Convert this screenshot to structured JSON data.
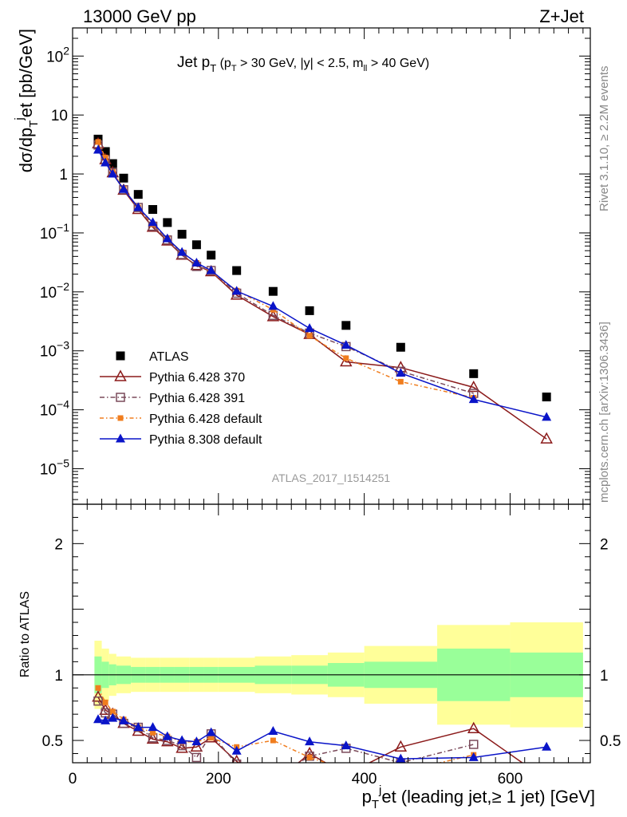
{
  "header": {
    "left": "13000 GeV pp",
    "right": "Z+Jet"
  },
  "side_labels": {
    "rivet": "Rivet 3.1.10, ≥ 2.2M events",
    "mcplots": "mcplots.cern.ch [arXiv:1306.3436]"
  },
  "analysis_id": "ATLAS_2017_I1514251",
  "colors": {
    "atlas": "#000000",
    "py6_370": "#8b1a1a",
    "py6_391": "#7a4a5a",
    "py6_default": "#f07d1e",
    "py8_default": "#0a14c8",
    "band_inner": "#99ff99",
    "band_outer": "#ffff99"
  },
  "chart_data": [
    {
      "type": "scatter",
      "panel": "main",
      "title": "Jet p_T (p_T > 30 GeV, |y| < 2.5, m_ll > 40 GeV)",
      "title_parts": {
        "main": "Jet p",
        "main_sub": "T",
        "paren_open": " (p",
        "paren_sub": "T",
        "mid": " > 30 GeV, |y| < 2.5, m",
        "mid_sub": "ll",
        "end": " > 40 GeV)"
      },
      "ylabel_parts": {
        "a": "dσ/dp",
        "sub": "T",
        "sup": "j",
        "b": "et [pb/GeV]"
      },
      "yscale": "log",
      "xlim": [
        0,
        710
      ],
      "ylim": [
        2.5e-06,
        300
      ],
      "y_tick_labels": [
        "10^-5",
        "10^-4",
        "10^-3",
        "10^-2",
        "10^-1",
        "1",
        "10",
        "10^2"
      ],
      "y_ticks_display": {
        "major": [
          {
            "v": 1e-05,
            "base": "10",
            "exp": "−5"
          },
          {
            "v": 0.0001,
            "base": "10",
            "exp": "−4"
          },
          {
            "v": 0.001,
            "base": "10",
            "exp": "−3"
          },
          {
            "v": 0.01,
            "base": "10",
            "exp": "−2"
          },
          {
            "v": 0.1,
            "base": "10",
            "exp": "−1"
          },
          {
            "v": 1,
            "base": "1",
            "exp": ""
          },
          {
            "v": 10,
            "base": "10",
            "exp": ""
          },
          {
            "v": 100,
            "base": "10",
            "exp": "2"
          }
        ]
      },
      "x": [
        35,
        45,
        55,
        70,
        90,
        110,
        130,
        150,
        170,
        190,
        225,
        275,
        325,
        375,
        450,
        550,
        650
      ],
      "series": [
        {
          "name": "ATLAS",
          "marker": "square",
          "values": [
            3.9,
            2.4,
            1.5,
            0.85,
            0.45,
            0.25,
            0.15,
            0.095,
            0.063,
            0.042,
            0.023,
            0.0102,
            0.0048,
            0.0027,
            0.00115,
            0.00041,
            0.000165
          ]
        },
        {
          "name": "Pythia 6.428 370",
          "marker": "open-triangle",
          "values": [
            3.25,
            1.75,
            1.05,
            0.53,
            0.25,
            0.125,
            0.073,
            0.042,
            0.028,
            0.022,
            0.0088,
            0.0038,
            0.0019,
            0.00065,
            0.00052,
            0.00024,
            3.2e-05
          ]
        },
        {
          "name": "Pythia 6.428 391",
          "marker": "open-square",
          "values": [
            3.1,
            1.75,
            1.05,
            0.54,
            0.27,
            0.13,
            0.076,
            0.043,
            0.027,
            0.023,
            0.0095,
            0.004,
            0.002,
            0.00118,
            0.00045,
            0.00019,
            null
          ]
        },
        {
          "name": "Pythia 6.428 default",
          "marker": "filled-small-square",
          "values": [
            3.5,
            1.9,
            1.08,
            0.56,
            0.27,
            0.14,
            0.08,
            0.047,
            0.031,
            0.022,
            0.0105,
            0.005,
            0.0018,
            0.00075,
            0.0003,
            0.00016,
            null
          ]
        },
        {
          "name": "Pythia 8.308 default",
          "marker": "filled-triangle",
          "values": [
            2.55,
            1.55,
            1.0,
            0.55,
            0.27,
            0.15,
            0.08,
            0.047,
            0.031,
            0.023,
            0.0103,
            0.0057,
            0.0024,
            0.00125,
            0.00042,
            0.00015,
            7.5e-05
          ]
        }
      ],
      "legend_placement": "bottom-left"
    },
    {
      "type": "line",
      "panel": "ratio",
      "ylabel": "Ratio to ATLAS",
      "xlabel_parts": {
        "a": "p",
        "sub": "T",
        "sup": "j",
        "b": "et (leading jet,≥ 1 jet) [GeV]"
      },
      "xlim": [
        0,
        710
      ],
      "ylim": [
        0.33,
        2.3
      ],
      "x_ticks": [
        0,
        200,
        400,
        600
      ],
      "y_ticks": [
        0.5,
        1,
        2
      ],
      "x_tick_labels": [
        "0",
        "200",
        "400",
        "600"
      ],
      "y_tick_labels": [
        "0.5",
        "1",
        "2"
      ],
      "band_edges": [
        30,
        40,
        50,
        60,
        80,
        100,
        120,
        140,
        160,
        180,
        200,
        250,
        300,
        350,
        400,
        500,
        600,
        700
      ],
      "band_inner": [
        0.14,
        0.1,
        0.08,
        0.07,
        0.06,
        0.06,
        0.06,
        0.06,
        0.06,
        0.06,
        0.06,
        0.07,
        0.07,
        0.09,
        0.1,
        0.2,
        0.17
      ],
      "band_outer": [
        0.26,
        0.2,
        0.16,
        0.14,
        0.13,
        0.13,
        0.13,
        0.13,
        0.13,
        0.13,
        0.13,
        0.14,
        0.15,
        0.17,
        0.22,
        0.38,
        0.4
      ],
      "x": [
        35,
        45,
        55,
        70,
        90,
        110,
        130,
        150,
        170,
        190,
        225,
        275,
        325,
        375,
        450,
        550,
        650
      ],
      "series": [
        {
          "name": "Pythia 6.428 370",
          "values": [
            0.83,
            0.73,
            0.7,
            0.63,
            0.57,
            0.51,
            0.49,
            0.44,
            0.45,
            0.52,
            0.34,
            0.17,
            0.4,
            0.24,
            0.45,
            0.59,
            0.2
          ]
        },
        {
          "name": "Pythia 6.428 391",
          "values": [
            0.8,
            0.71,
            0.7,
            0.63,
            0.6,
            0.52,
            0.5,
            0.46,
            0.37,
            0.55,
            0.32,
            0.21,
            0.38,
            0.44,
            0.33,
            0.47,
            null
          ]
        },
        {
          "name": "Pythia 6.428 default",
          "values": [
            0.9,
            0.79,
            0.72,
            0.66,
            0.6,
            0.56,
            0.53,
            0.49,
            0.49,
            0.52,
            0.45,
            0.5,
            0.37,
            0.28,
            0.26,
            0.39,
            null
          ]
        },
        {
          "name": "Pythia 8.308 default",
          "values": [
            0.66,
            0.65,
            0.67,
            0.65,
            0.6,
            0.6,
            0.53,
            0.5,
            0.49,
            0.56,
            0.42,
            0.57,
            0.49,
            0.46,
            0.36,
            0.37,
            0.45
          ]
        }
      ]
    }
  ]
}
